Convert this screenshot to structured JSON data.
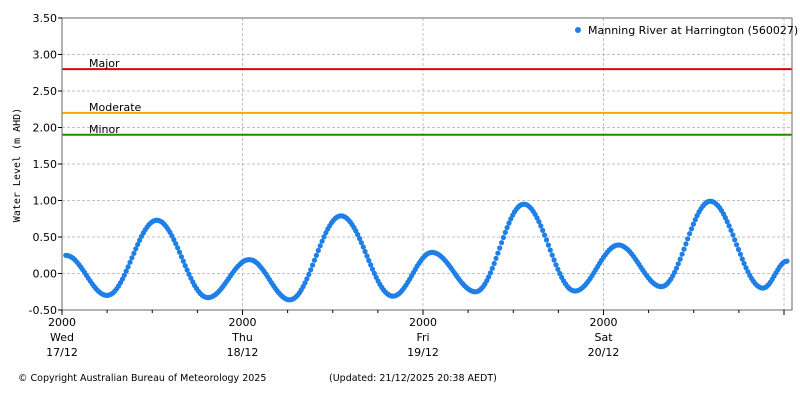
{
  "chart_data": {
    "type": "scatter",
    "title": "",
    "ylabel": "Water Level (m AHD)",
    "xlabel": "",
    "ylim": [
      -0.5,
      3.5
    ],
    "yticks": [
      "3.50",
      "3.00",
      "2.50",
      "2.00",
      "1.50",
      "1.00",
      "0.50",
      "0.00",
      "-0.50"
    ],
    "x_major_ticks": [
      {
        "time": "2000",
        "day": "Wed",
        "date": "17/12"
      },
      {
        "time": "2000",
        "day": "Thu",
        "date": "18/12"
      },
      {
        "time": "2000",
        "day": "Fri",
        "date": "19/12"
      },
      {
        "time": "2000",
        "day": "Sat",
        "date": "20/12"
      }
    ],
    "x_minor_tick_hours": 6,
    "grid": true,
    "legend": {
      "position": "top-right",
      "entries": [
        "Manning River at Harrington (560027)"
      ]
    },
    "thresholds": [
      {
        "name": "Major",
        "value": 2.8,
        "color": "#e60000"
      },
      {
        "name": "Moderate",
        "value": 2.2,
        "color": "#ffa500"
      },
      {
        "name": "Minor",
        "value": 1.9,
        "color": "#228b00"
      }
    ],
    "series": [
      {
        "name": "Manning River at Harrington (560027)",
        "color": "#1e7fe6",
        "x_hours": [
          0.5,
          6.0,
          12.6,
          19.4,
          24.9,
          30.3,
          37.1,
          44.0,
          49.2,
          55.0,
          61.4,
          68.2,
          74.0,
          79.7,
          86.2,
          93.2,
          96.4
        ],
        "values": [
          0.25,
          -0.3,
          0.73,
          -0.33,
          0.19,
          -0.36,
          0.79,
          -0.31,
          0.29,
          -0.25,
          0.95,
          -0.24,
          0.39,
          -0.18,
          0.99,
          -0.2,
          0.17
        ]
      }
    ]
  },
  "footer": {
    "copyright": "© Copyright Australian Bureau of Meteorology 2025",
    "updated": "(Updated: 21/12/2025 20:38 AEDT)"
  }
}
